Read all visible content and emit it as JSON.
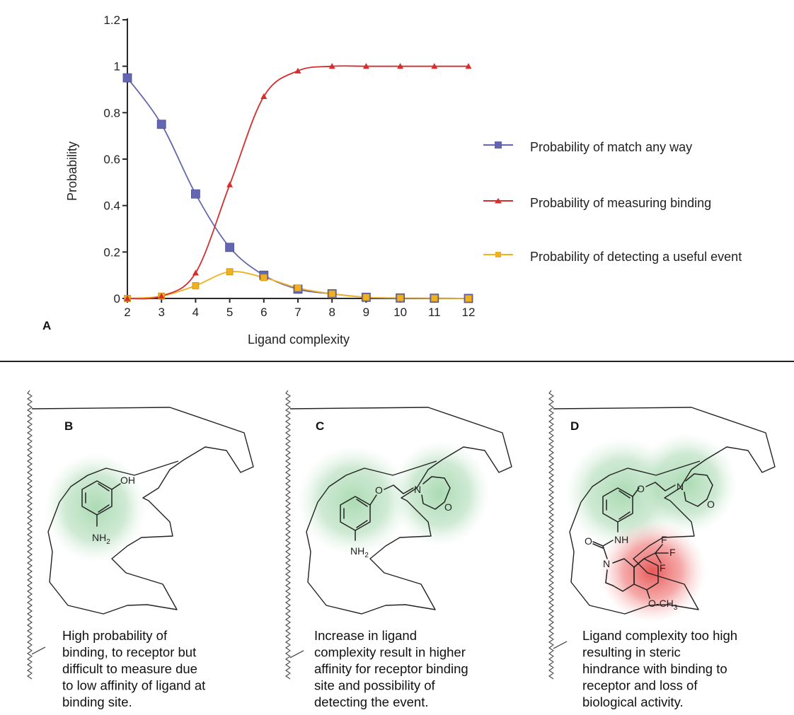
{
  "chart_data": {
    "type": "line",
    "xlabel": "Ligand complexity",
    "ylabel": "Probability",
    "xlim": [
      2,
      12
    ],
    "ylim": [
      0,
      1.2
    ],
    "x_ticks": [
      "2",
      "3",
      "4",
      "5",
      "6",
      "7",
      "8",
      "9",
      "10",
      "11",
      "12"
    ],
    "y_ticks": [
      "0",
      "0.2",
      "0.4",
      "0.6",
      "0.8",
      "1",
      "1.2"
    ],
    "legend_position": "right",
    "grid": false,
    "x": [
      2,
      3,
      4,
      5,
      6,
      7,
      8,
      9,
      10,
      11,
      12
    ],
    "series": [
      {
        "name": "Probability of match any way",
        "color": "#6366b0",
        "marker": "square",
        "values": [
          0.95,
          0.75,
          0.45,
          0.22,
          0.1,
          0.04,
          0.02,
          0.005,
          0.002,
          0.001,
          0.0
        ]
      },
      {
        "name": "Probability of measuring binding",
        "color": "#d42e2e",
        "marker": "triangle",
        "values": [
          0.0,
          0.01,
          0.11,
          0.49,
          0.87,
          0.98,
          1.0,
          1.0,
          1.0,
          1.0,
          1.0
        ]
      },
      {
        "name": "Probability of detecting a useful event",
        "color": "#f0b020",
        "marker": "square",
        "values": [
          0.0,
          0.01,
          0.055,
          0.115,
          0.09,
          0.045,
          0.02,
          0.005,
          0.002,
          0.001,
          0.0
        ]
      }
    ]
  },
  "panel_a_label": "A",
  "panels": [
    {
      "letter": "B",
      "caption_lines": [
        "High probability of",
        "binding, to receptor but",
        "difficult to measure due",
        "to low affinity of ligand at",
        "binding site."
      ]
    },
    {
      "letter": "C",
      "caption_lines": [
        "Increase in ligand",
        "complexity result in higher",
        "affinity for receptor binding",
        "site and possibility of",
        "detecting the event."
      ]
    },
    {
      "letter": "D",
      "caption_lines": [
        "Ligand complexity too high",
        "resulting in steric",
        "hindrance with binding to",
        "receptor and loss of",
        "biological activity."
      ]
    }
  ],
  "molecule_labels": {
    "oh": "OH",
    "nh": "NH",
    "nh2_n": "NH",
    "nh2_sub": "2",
    "o": "O",
    "n": "N",
    "f": "F",
    "och3_o": "O",
    "och3_c": "CH",
    "och3_sub": "3"
  },
  "colors": {
    "green_glow": "#7dbf8a",
    "red_glow": "#e85050",
    "pocket": "#222222"
  }
}
